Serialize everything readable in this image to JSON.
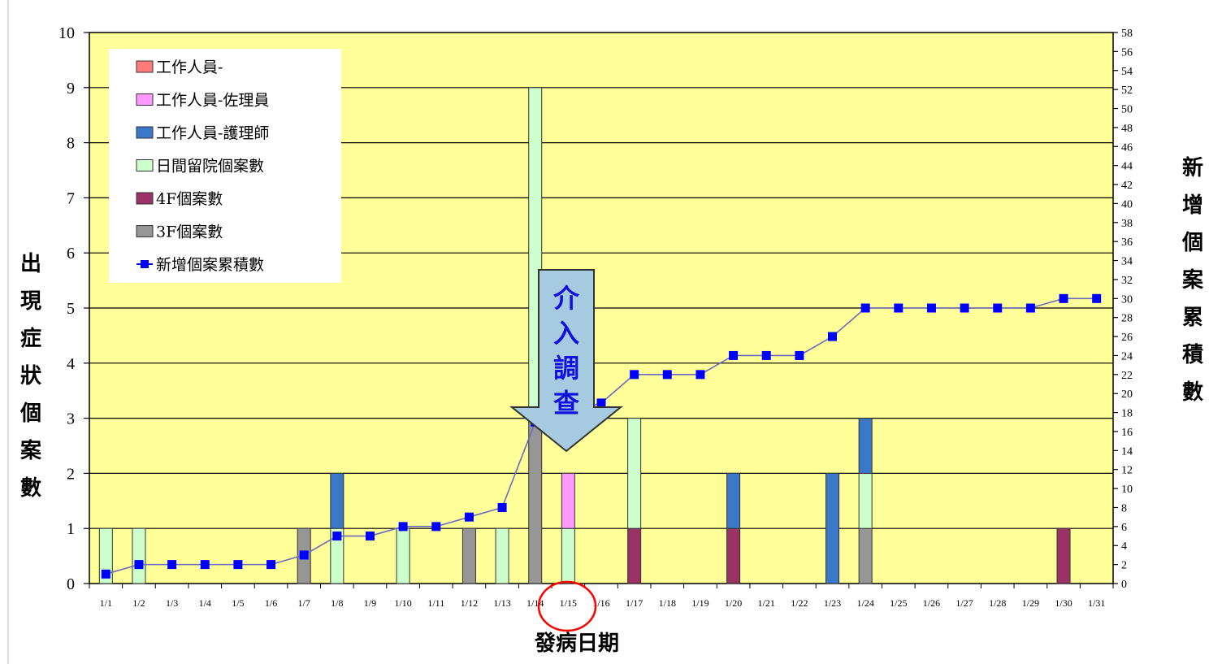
{
  "chart_data": {
    "type": "bar",
    "stacked": true,
    "xlabel": "發病日期",
    "ylabel": "出現症狀個案數",
    "y2label": "新增個案累積數",
    "ylim": [
      0,
      10
    ],
    "y2lim": [
      0,
      58
    ],
    "y_ticks": [
      "0",
      "1",
      "2",
      "3",
      "4",
      "5",
      "6",
      "7",
      "8",
      "9",
      "10"
    ],
    "y2_ticks": [
      "0",
      "2",
      "4",
      "6",
      "8",
      "10",
      "12",
      "14",
      "16",
      "18",
      "20",
      "22",
      "24",
      "26",
      "28",
      "30",
      "32",
      "34",
      "36",
      "38",
      "40",
      "42",
      "44",
      "46",
      "48",
      "50",
      "52",
      "54",
      "56",
      "58"
    ],
    "categories": [
      "1/1",
      "1/2",
      "1/3",
      "1/4",
      "1/5",
      "1/6",
      "1/7",
      "1/8",
      "1/9",
      "1/10",
      "1/11",
      "1/12",
      "1/13",
      "1/14",
      "1/15",
      "1/16",
      "1/17",
      "1/18",
      "1/19",
      "1/20",
      "1/21",
      "1/22",
      "1/23",
      "1/24",
      "1/25",
      "1/26",
      "1/27",
      "1/28",
      "1/29",
      "1/30",
      "1/31"
    ],
    "grid": true,
    "background": "#ffff99",
    "legend_position": "top-left",
    "series": [
      {
        "name": "3F個案數",
        "color": "#969696",
        "values": [
          0,
          0,
          0,
          0,
          0,
          0,
          1,
          0,
          0,
          0,
          0,
          1,
          0,
          3,
          0,
          0,
          0,
          0,
          0,
          0,
          0,
          0,
          0,
          1,
          0,
          0,
          0,
          0,
          0,
          0,
          0
        ]
      },
      {
        "name": "4F個案數",
        "color": "#993366",
        "values": [
          0,
          0,
          0,
          0,
          0,
          0,
          0,
          0,
          0,
          0,
          0,
          0,
          0,
          0,
          0,
          0,
          1,
          0,
          0,
          1,
          0,
          0,
          0,
          0,
          0,
          0,
          0,
          0,
          0,
          1,
          0
        ]
      },
      {
        "name": "日間留院個案數",
        "color": "#ccffcc",
        "values": [
          1,
          1,
          0,
          0,
          0,
          0,
          0,
          1,
          0,
          1,
          0,
          0,
          1,
          6,
          1,
          0,
          2,
          0,
          0,
          0,
          0,
          0,
          0,
          1,
          0,
          0,
          0,
          0,
          0,
          0,
          0
        ]
      },
      {
        "name": "工作人員-護理師",
        "color": "#3c78c8",
        "values": [
          0,
          0,
          0,
          0,
          0,
          0,
          0,
          1,
          0,
          0,
          0,
          0,
          0,
          0,
          0,
          0,
          0,
          0,
          0,
          1,
          0,
          0,
          2,
          1,
          0,
          0,
          0,
          0,
          0,
          0,
          0
        ]
      },
      {
        "name": "工作人員-佐理員",
        "color": "#ff99ff",
        "values": [
          0,
          0,
          0,
          0,
          0,
          0,
          0,
          0,
          0,
          0,
          0,
          0,
          0,
          0,
          1,
          0,
          0,
          0,
          0,
          0,
          0,
          0,
          0,
          0,
          0,
          0,
          0,
          0,
          0,
          0,
          0
        ]
      },
      {
        "name": "工作人員-",
        "color": "#ff7b7b",
        "values": [
          0,
          0,
          0,
          0,
          0,
          0,
          0,
          0,
          0,
          0,
          0,
          0,
          0,
          0,
          0,
          0,
          0,
          0,
          0,
          0,
          0,
          0,
          0,
          0,
          0,
          0,
          0,
          0,
          0,
          0,
          0
        ]
      }
    ],
    "line_series": {
      "name": "新增個案累積數",
      "color": "#0000ff",
      "axis": "right",
      "values": [
        1,
        2,
        2,
        2,
        2,
        2,
        3,
        5,
        5,
        6,
        6,
        7,
        8,
        17,
        18,
        19,
        22,
        22,
        22,
        24,
        24,
        24,
        26,
        29,
        29,
        29,
        29,
        29,
        29,
        30,
        30
      ]
    },
    "legend_order": [
      "工作人員-",
      "工作人員-佐理員",
      "工作人員-護理師",
      "日間留院個案數",
      "4F個案數",
      "3F個案數",
      "新增個案累積數"
    ],
    "annotations": [
      {
        "type": "arrow",
        "text": "介入調查",
        "at_category": "1/15"
      },
      {
        "type": "circle",
        "at_category": "1/15"
      }
    ]
  }
}
